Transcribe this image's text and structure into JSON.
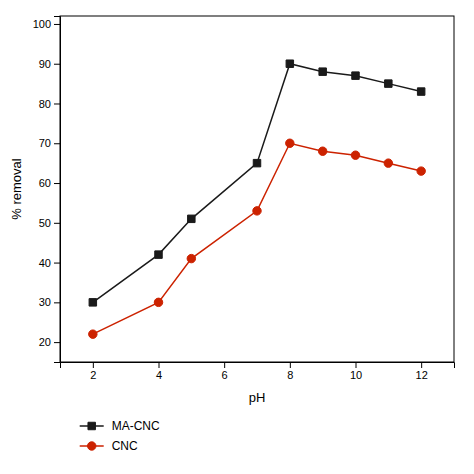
{
  "chart_data": {
    "type": "line",
    "x": [
      2,
      4,
      5,
      7,
      8,
      9,
      10,
      11,
      12
    ],
    "series": [
      {
        "name": "MA-CNC",
        "color": "#1a1a1a",
        "marker": "square",
        "values": [
          30,
          42,
          51,
          65,
          90,
          88,
          87,
          85,
          83
        ]
      },
      {
        "name": "CNC",
        "color": "#cc2200",
        "marker": "circle",
        "values": [
          22,
          30,
          41,
          53,
          70,
          68,
          67,
          65,
          63
        ]
      }
    ],
    "xlabel": "pH",
    "ylabel": "% removal",
    "xlim": [
      1,
      13
    ],
    "ylim": [
      15,
      102
    ],
    "xticks": [
      2,
      4,
      6,
      8,
      10,
      12
    ],
    "yticks": [
      20,
      30,
      40,
      50,
      60,
      70,
      80,
      90,
      100
    ],
    "grid": false,
    "legend": "bottom"
  }
}
